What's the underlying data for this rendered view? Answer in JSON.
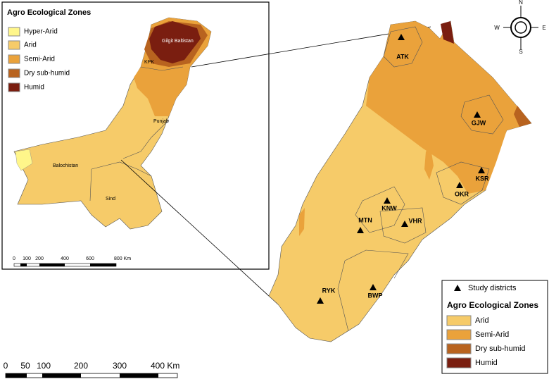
{
  "inset": {
    "legend_title": "Agro Ecological Zones",
    "legend_items": [
      "Hyper-Arid",
      "Arid",
      "Semi-Arid",
      "Dry sub-humid",
      "Humid"
    ],
    "regions": [
      "Gilgit Baltistan",
      "KPK",
      "Punjab",
      "Balochistan",
      "Sind"
    ],
    "scale_labels": [
      "0",
      "100",
      "200",
      "400",
      "600",
      "800 Km"
    ]
  },
  "compass": {
    "n": "N",
    "s": "S",
    "e": "E",
    "w": "W"
  },
  "districts": [
    "ATK",
    "GJW",
    "KSR",
    "OKR",
    "KNW",
    "MTN",
    "VHR",
    "RYK",
    "BWP"
  ],
  "legend": {
    "marker_label": "Study districts",
    "title": "Agro Ecological Zones",
    "items": [
      "Arid",
      "Semi-Arid",
      "Dry sub-humid",
      "Humid"
    ]
  },
  "scale_labels": [
    "0",
    "50",
    "100",
    "200",
    "300",
    "400 Km"
  ]
}
